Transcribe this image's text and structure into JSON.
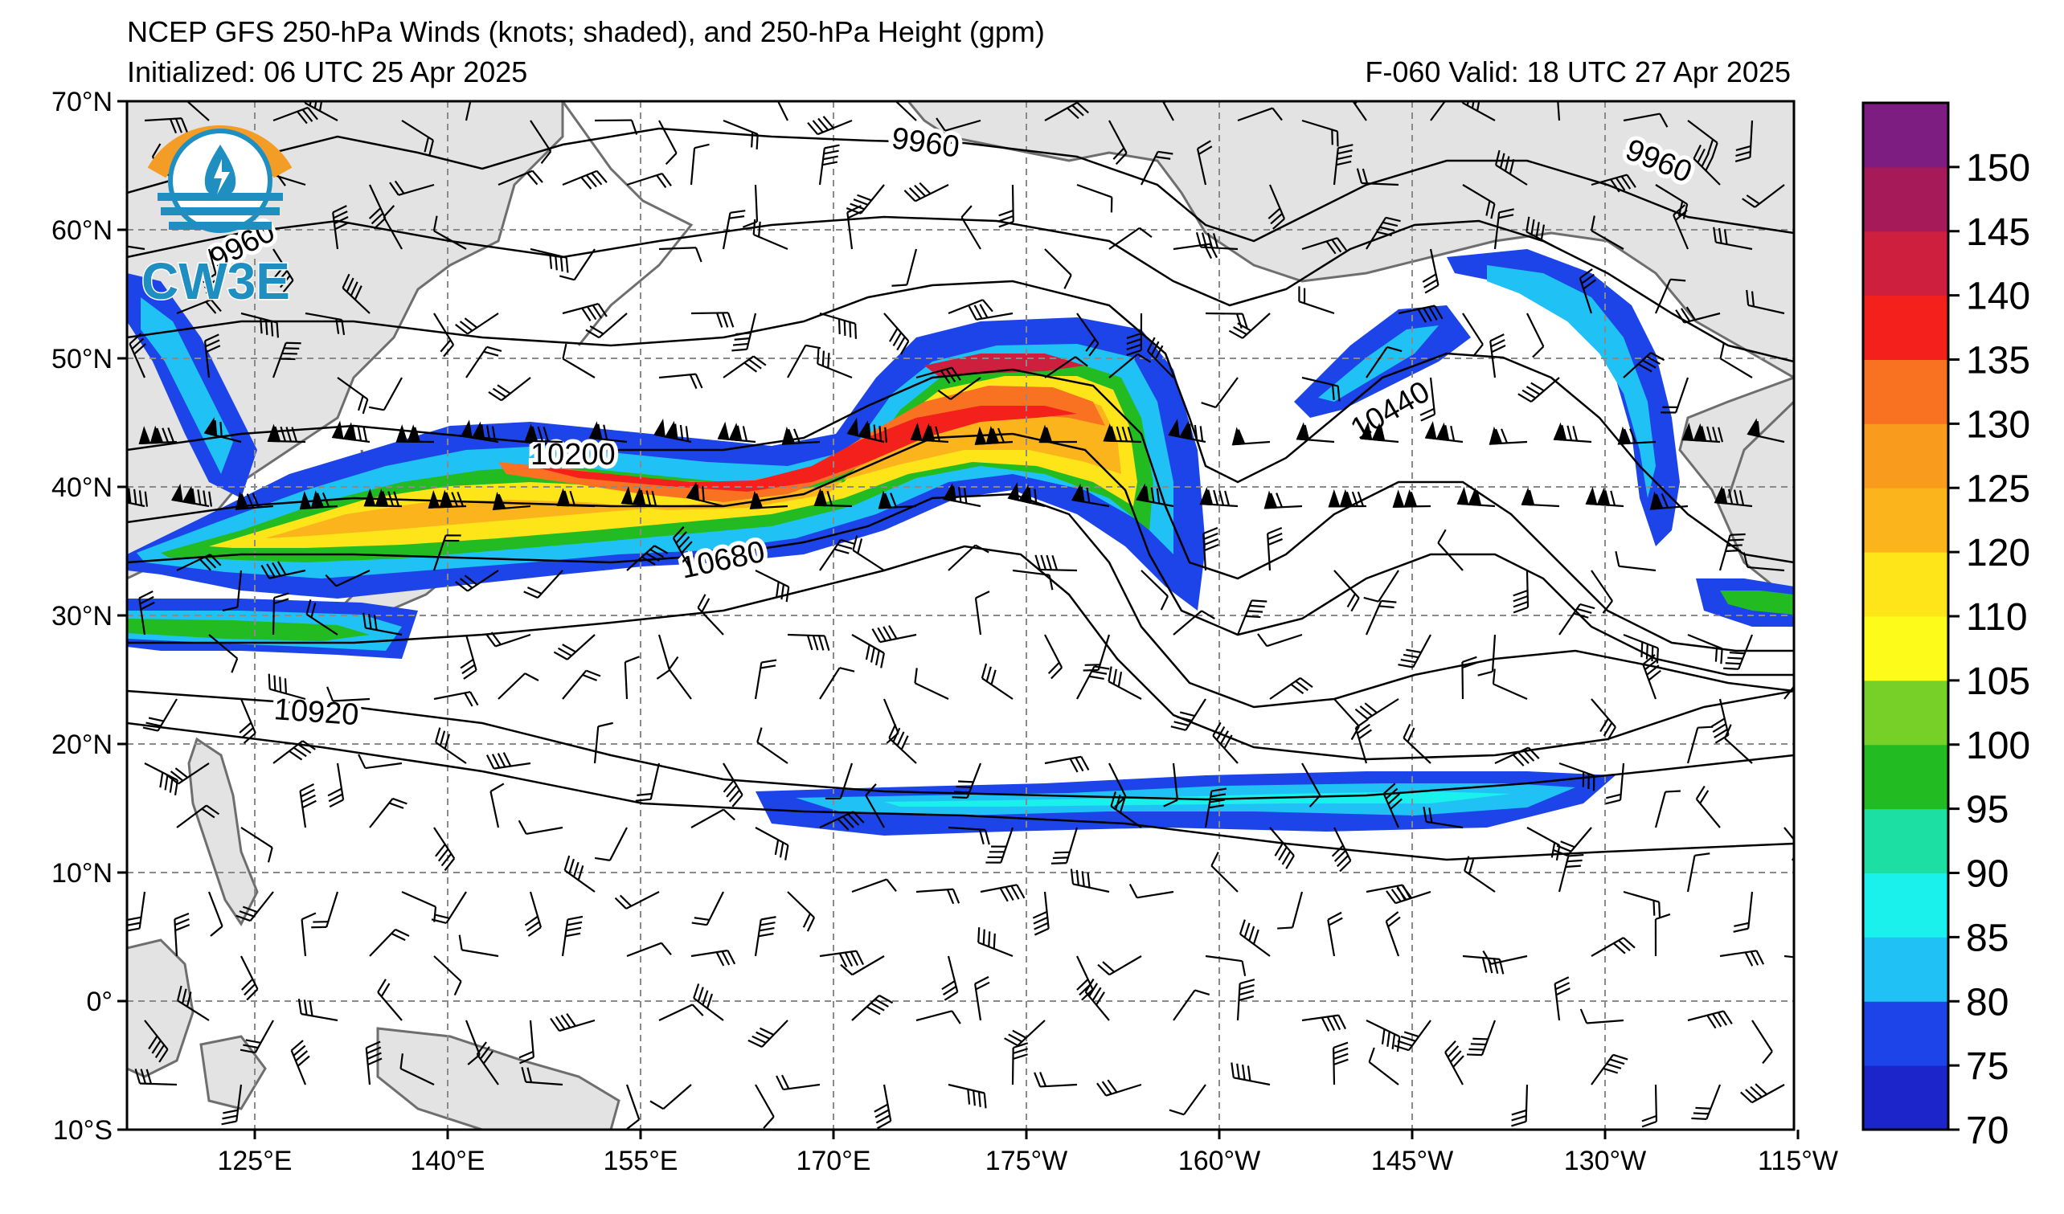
{
  "header": {
    "title": "NCEP GFS 250-hPa Winds (knots; shaded), and 250-hPa Height (gpm)",
    "initialized": "Initialized: 06 UTC 25 Apr 2025",
    "valid": "F-060  Valid: 18 UTC 27 Apr 2025"
  },
  "logo": {
    "text": "CW3E",
    "ring_color": "#f39c26",
    "accent_color": "#1f8fc1"
  },
  "map": {
    "lat_labels": [
      "70°N",
      "60°N",
      "50°N",
      "40°N",
      "30°N",
      "20°N",
      "10°N",
      "0°",
      "10°S"
    ],
    "lon_labels": [
      "125°E",
      "140°E",
      "155°E",
      "170°E",
      "175°W",
      "160°W",
      "145°W",
      "130°W",
      "115°W"
    ],
    "contour_labels": [
      "9960",
      "9960",
      "9960",
      "10200",
      "10440",
      "10680",
      "10920"
    ],
    "land_color": "#e3e3e3",
    "coast_color": "#6e6e6e"
  },
  "colorbar": {
    "tick_labels": [
      "70",
      "75",
      "80",
      "85",
      "90",
      "95",
      "100",
      "105",
      "110",
      "120",
      "125",
      "130",
      "135",
      "140",
      "145",
      "150"
    ],
    "bins": [
      {
        "min": 70,
        "color": "#1b25c9"
      },
      {
        "min": 75,
        "color": "#1c44e8"
      },
      {
        "min": 80,
        "color": "#20c2f6"
      },
      {
        "min": 85,
        "color": "#1af0ec"
      },
      {
        "min": 90,
        "color": "#1bdfa3"
      },
      {
        "min": 95,
        "color": "#23bb22"
      },
      {
        "min": 100,
        "color": "#76d028"
      },
      {
        "min": 105,
        "color": "#fdfb1a"
      },
      {
        "min": 110,
        "color": "#fee51a"
      },
      {
        "min": 120,
        "color": "#fcb41c"
      },
      {
        "min": 125,
        "color": "#f99c1e"
      },
      {
        "min": 130,
        "color": "#f97222"
      },
      {
        "min": 135,
        "color": "#f4201c"
      },
      {
        "min": 140,
        "color": "#cf1f3f"
      },
      {
        "min": 145,
        "color": "#a61a5a"
      },
      {
        "min": 150,
        "color": "#7e1d81"
      }
    ]
  }
}
